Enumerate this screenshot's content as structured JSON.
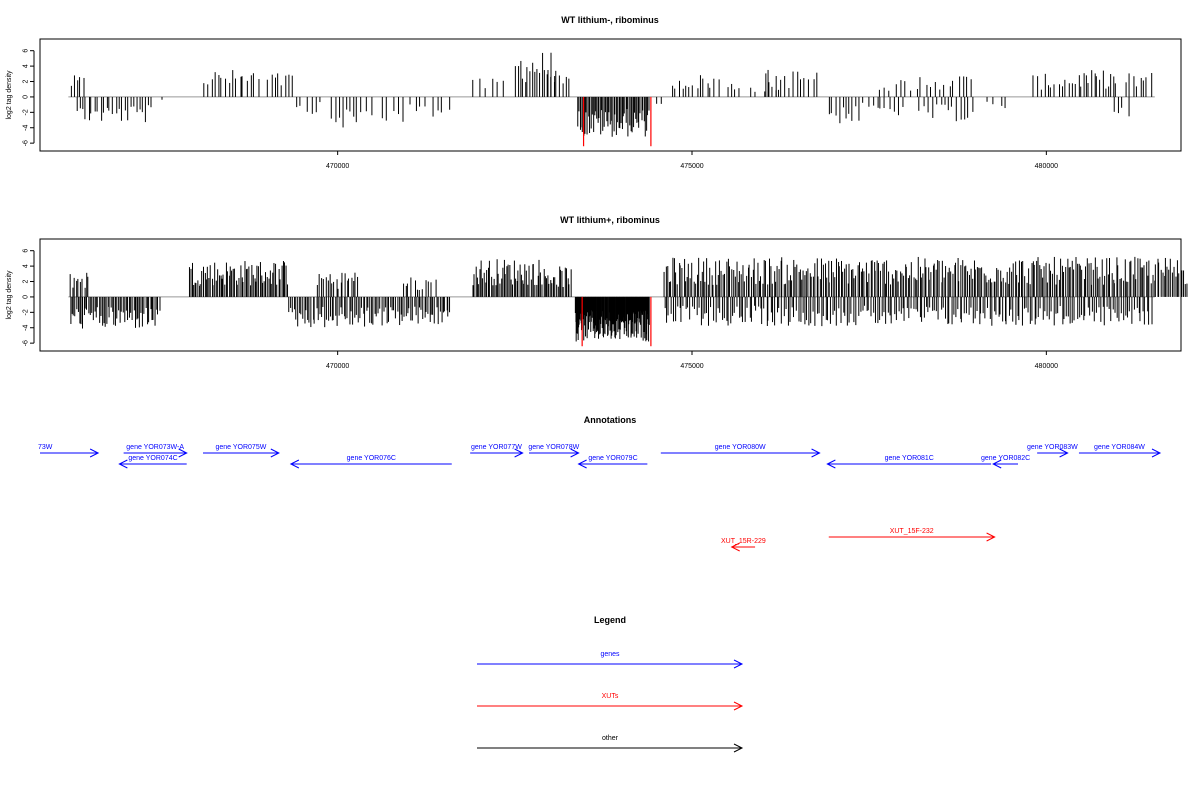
{
  "chart_data": [
    {
      "type": "bar",
      "title": "WT lithium-, ribominus",
      "ylabel": "log2 tag density",
      "ylim": [
        -6.5,
        7
      ],
      "yticks": [
        -6,
        -4,
        -2,
        0,
        2,
        4,
        6
      ],
      "xlim": [
        465800,
        481900
      ],
      "xticks": [
        470000,
        475000,
        480000
      ],
      "xticklabels": [
        "470000",
        "475000",
        "480000"
      ],
      "track_start": 466200,
      "track_end": 481530,
      "colors": {
        "bar": "#000000",
        "highlight": "#ff0000",
        "baseline": "#999999"
      },
      "highlight_bars": [
        {
          "x": 473470,
          "value": -6.4
        },
        {
          "x": 474420,
          "value": -6.4
        }
      ],
      "segments": [
        {
          "start": 466220,
          "end": 466440,
          "amp": 2.8,
          "sign": 1,
          "count": 5
        },
        {
          "start": 466300,
          "end": 467400,
          "amp": 3.4,
          "sign": -1,
          "count": 26
        },
        {
          "start": 467500,
          "end": 467540,
          "amp": 1.2,
          "sign": -1,
          "count": 1
        },
        {
          "start": 468100,
          "end": 468900,
          "amp": 3.6,
          "sign": 1,
          "count": 16
        },
        {
          "start": 469000,
          "end": 469400,
          "amp": 3.2,
          "sign": 1,
          "count": 8
        },
        {
          "start": 469400,
          "end": 469800,
          "amp": 2.2,
          "sign": -1,
          "count": 6
        },
        {
          "start": 469900,
          "end": 470300,
          "amp": 4.2,
          "sign": -1,
          "count": 8
        },
        {
          "start": 470300,
          "end": 471000,
          "amp": 3.5,
          "sign": -1,
          "count": 8
        },
        {
          "start": 471000,
          "end": 471600,
          "amp": 3.2,
          "sign": -1,
          "count": 8
        },
        {
          "start": 471900,
          "end": 472400,
          "amp": 2.4,
          "sign": 1,
          "count": 6
        },
        {
          "start": 472500,
          "end": 473100,
          "amp": 6.0,
          "sign": 1,
          "count": 18
        },
        {
          "start": 473000,
          "end": 473300,
          "amp": 2.8,
          "sign": 1,
          "count": 6
        },
        {
          "start": 473380,
          "end": 474400,
          "amp": 5.2,
          "sign": -1,
          "count": 60
        },
        {
          "start": 474500,
          "end": 474600,
          "amp": 1.0,
          "sign": -1,
          "count": 2
        },
        {
          "start": 474700,
          "end": 475400,
          "amp": 3.0,
          "sign": 1,
          "count": 14
        },
        {
          "start": 475500,
          "end": 475700,
          "amp": 2.0,
          "sign": 1,
          "count": 4
        },
        {
          "start": 475800,
          "end": 476300,
          "amp": 2.0,
          "sign": 1,
          "count": 6
        },
        {
          "start": 476000,
          "end": 476800,
          "amp": 3.6,
          "sign": 1,
          "count": 14
        },
        {
          "start": 476900,
          "end": 477400,
          "amp": 3.5,
          "sign": -1,
          "count": 10
        },
        {
          "start": 477400,
          "end": 478000,
          "amp": 2.5,
          "sign": -1,
          "count": 10
        },
        {
          "start": 477600,
          "end": 478200,
          "amp": 2.5,
          "sign": 1,
          "count": 8
        },
        {
          "start": 478200,
          "end": 479000,
          "amp": 3.2,
          "sign": -1,
          "count": 14
        },
        {
          "start": 478200,
          "end": 479000,
          "amp": 3.0,
          "sign": 1,
          "count": 12
        },
        {
          "start": 479100,
          "end": 479500,
          "amp": 1.6,
          "sign": -1,
          "count": 4
        },
        {
          "start": 479800,
          "end": 480400,
          "amp": 3.0,
          "sign": 1,
          "count": 12
        },
        {
          "start": 480400,
          "end": 481000,
          "amp": 3.5,
          "sign": 1,
          "count": 16
        },
        {
          "start": 480900,
          "end": 481200,
          "amp": 2.6,
          "sign": -1,
          "count": 4
        },
        {
          "start": 481100,
          "end": 481500,
          "amp": 3.3,
          "sign": 1,
          "count": 8
        }
      ]
    },
    {
      "type": "bar",
      "title": "WT lithium+, ribominus",
      "ylabel": "log2 tag density",
      "ylim": [
        -6.5,
        7
      ],
      "yticks": [
        -6,
        -4,
        -2,
        0,
        2,
        4,
        6
      ],
      "xlim": [
        465800,
        481900
      ],
      "xticks": [
        470000,
        475000,
        480000
      ],
      "xticklabels": [
        "470000",
        "475000",
        "480000"
      ],
      "track_start": 466200,
      "track_end": 481530,
      "colors": {
        "bar": "#000000",
        "highlight": "#ff0000",
        "baseline": "#999999"
      },
      "highlight_bars": [
        {
          "x": 473450,
          "value": -6.4
        },
        {
          "x": 474420,
          "value": -6.4
        }
      ],
      "segments": [
        {
          "start": 466220,
          "end": 466500,
          "amp": 3.5,
          "sign": 1,
          "count": 10
        },
        {
          "start": 466220,
          "end": 467500,
          "amp": 4.2,
          "sign": -1,
          "count": 60
        },
        {
          "start": 467900,
          "end": 469300,
          "amp": 4.8,
          "sign": 1,
          "count": 70
        },
        {
          "start": 469300,
          "end": 470400,
          "amp": 4.0,
          "sign": -1,
          "count": 45
        },
        {
          "start": 469700,
          "end": 470300,
          "amp": 3.5,
          "sign": 1,
          "count": 20
        },
        {
          "start": 470400,
          "end": 471600,
          "amp": 3.8,
          "sign": -1,
          "count": 50
        },
        {
          "start": 470900,
          "end": 471400,
          "amp": 2.6,
          "sign": 1,
          "count": 12
        },
        {
          "start": 471900,
          "end": 472900,
          "amp": 5.0,
          "sign": 1,
          "count": 50
        },
        {
          "start": 472900,
          "end": 473300,
          "amp": 4.0,
          "sign": 1,
          "count": 20
        },
        {
          "start": 473350,
          "end": 474400,
          "amp": 5.8,
          "sign": -1,
          "count": 150
        },
        {
          "start": 474600,
          "end": 482000,
          "amp": 5.2,
          "sign": 1,
          "count": 320
        },
        {
          "start": 474600,
          "end": 481500,
          "amp": 3.8,
          "sign": -1,
          "count": 230
        }
      ]
    }
  ],
  "annotations": {
    "title": "Annotations",
    "features": [
      {
        "label": "73W",
        "start": 465800,
        "end": 466620,
        "strand": "+",
        "row": 0,
        "kind": "gene"
      },
      {
        "label": "gene YOR073W-A",
        "start": 466980,
        "end": 467870,
        "strand": "+",
        "row": 0,
        "kind": "gene"
      },
      {
        "label": "gene YOR074C",
        "start": 466920,
        "end": 467870,
        "strand": "-",
        "row": 1,
        "kind": "gene"
      },
      {
        "label": "gene YOR075W",
        "start": 468100,
        "end": 469170,
        "strand": "+",
        "row": 0,
        "kind": "gene"
      },
      {
        "label": "gene YOR076C",
        "start": 469340,
        "end": 471610,
        "strand": "-",
        "row": 1,
        "kind": "gene"
      },
      {
        "label": "gene YOR077W",
        "start": 471870,
        "end": 472610,
        "strand": "+",
        "row": 0,
        "kind": "gene"
      },
      {
        "label": "gene YOR078W",
        "start": 472700,
        "end": 473400,
        "strand": "+",
        "row": 0,
        "kind": "gene"
      },
      {
        "label": "gene YOR079C",
        "start": 473400,
        "end": 474370,
        "strand": "-",
        "row": 1,
        "kind": "gene"
      },
      {
        "label": "gene YOR080W",
        "start": 474560,
        "end": 476800,
        "strand": "+",
        "row": 0,
        "kind": "gene"
      },
      {
        "label": "gene YOR081C",
        "start": 476910,
        "end": 479220,
        "strand": "-",
        "row": 1,
        "kind": "gene"
      },
      {
        "label": "gene YOR082C",
        "start": 479250,
        "end": 479600,
        "strand": "-",
        "row": 1,
        "kind": "gene"
      },
      {
        "label": "gene YOR083W",
        "start": 479870,
        "end": 480300,
        "strand": "+",
        "row": 0,
        "kind": "gene"
      },
      {
        "label": "gene YOR084W",
        "start": 480460,
        "end": 481900,
        "strand": "+",
        "row": 0,
        "kind": "gene"
      },
      {
        "label": "XUT_15R-229",
        "start": 475560,
        "end": 475890,
        "strand": "-",
        "row": 2,
        "kind": "xut"
      },
      {
        "label": "XUT_15F-232",
        "start": 476930,
        "end": 479270,
        "strand": "+",
        "row": 3,
        "kind": "xut"
      }
    ]
  },
  "legend": {
    "title": "Legend",
    "items": [
      {
        "label": "genes",
        "color": "#0000ff"
      },
      {
        "label": "XUTs",
        "color": "#ff0000"
      },
      {
        "label": "other",
        "color": "#000000"
      }
    ]
  },
  "colors": {
    "gene": "#0000ff",
    "xut": "#ff0000",
    "other": "#000000"
  }
}
